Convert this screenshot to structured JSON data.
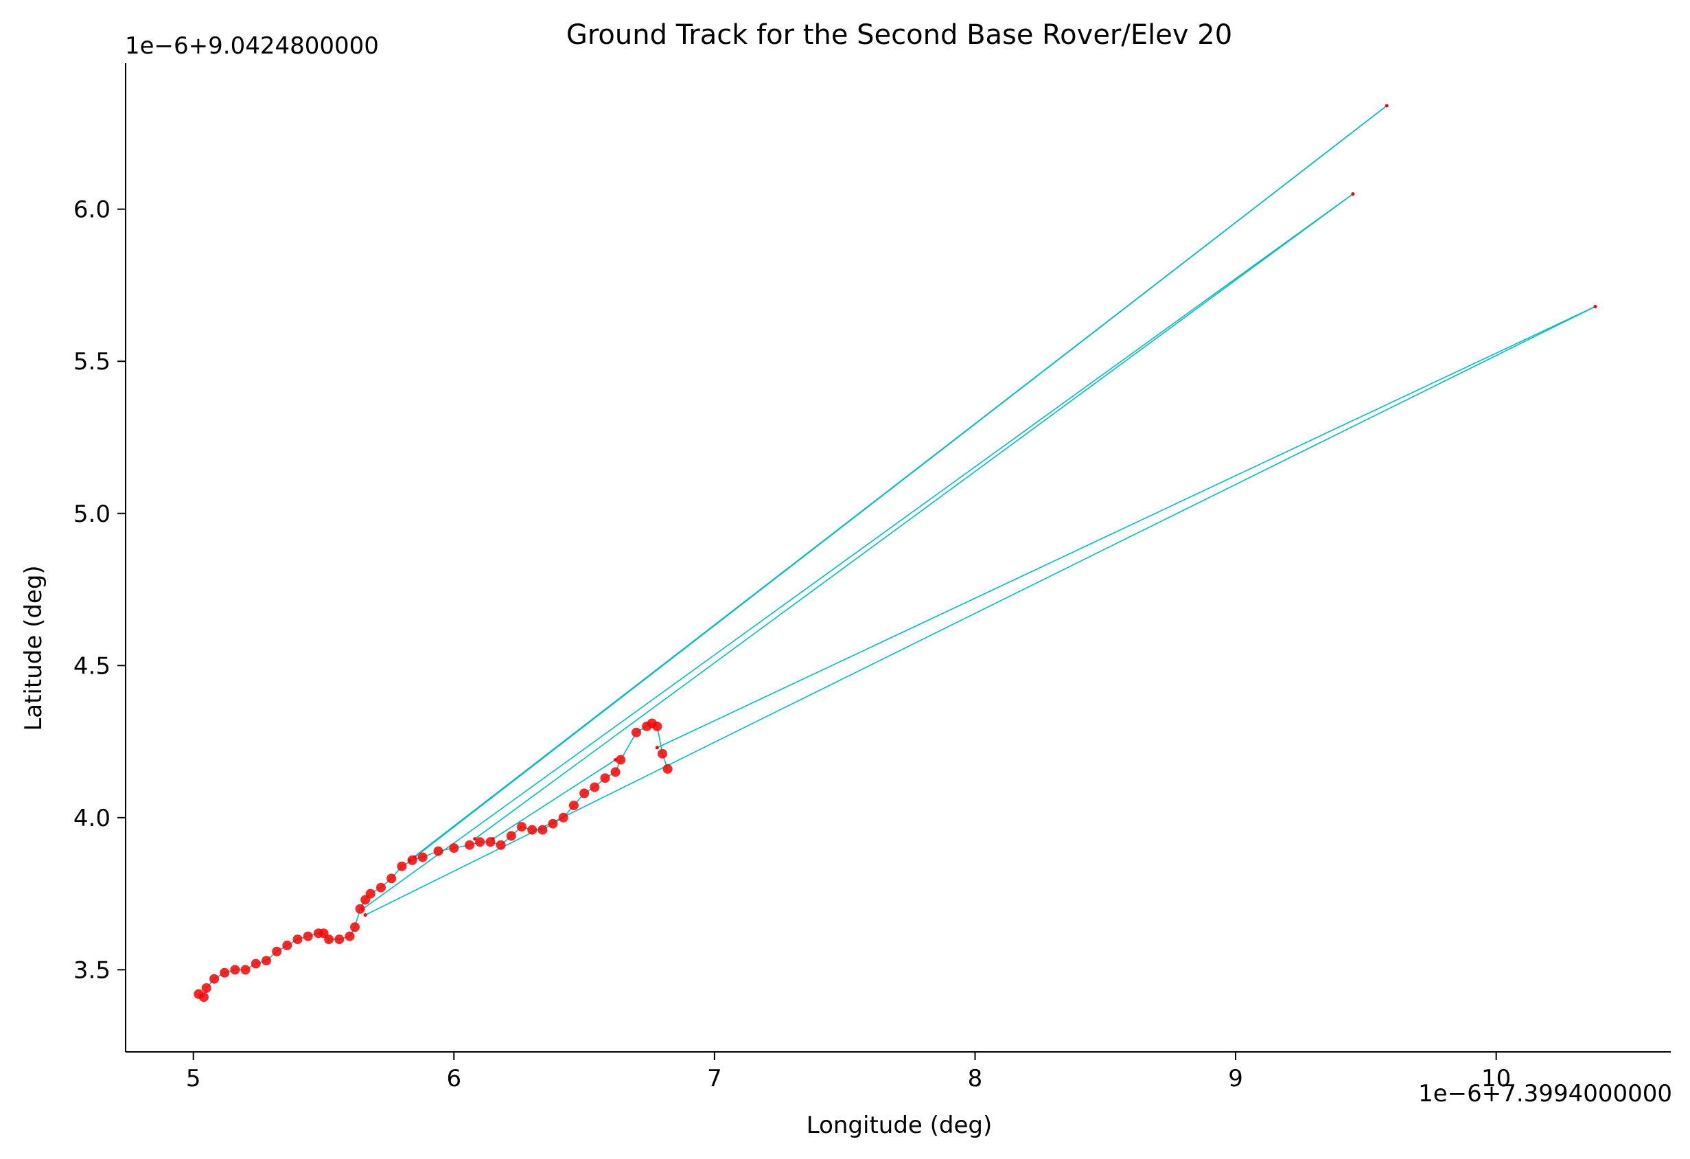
{
  "chart_data": {
    "type": "line",
    "title": "Ground Track for the Second Base Rover/Elev 20",
    "xlabel": "Longitude (deg)",
    "ylabel": "Latitude (deg)",
    "x_offset_text": "1e−6+7.3994000000",
    "y_offset_text": "1e−6+9.0424800000",
    "x_offset": 7.3994,
    "y_offset": 9.04248,
    "x_scale": 1e-06,
    "y_scale": 1e-06,
    "xlim": [
      4.74,
      10.67
    ],
    "ylim": [
      3.23,
      6.48
    ],
    "xticks": [
      5,
      6,
      7,
      8,
      9,
      10
    ],
    "xtick_labels": [
      "5",
      "6",
      "7",
      "8",
      "9",
      "10"
    ],
    "yticks": [
      3.5,
      4.0,
      4.5,
      5.0,
      5.5,
      6.0
    ],
    "ytick_labels": [
      "3.5",
      "4.0",
      "4.5",
      "5.0",
      "5.5",
      "6.0"
    ],
    "grid": false,
    "units_note": "x and y values below are in units of 1e-6 deg added to the printed offsets",
    "line_color": "#00bfbf",
    "marker_color": "#ff0000",
    "outlier_segments": [
      {
        "x": [
          5.85,
          9.58
        ],
        "y": [
          3.87,
          6.34
        ]
      },
      {
        "x": [
          9.58,
          5.83
        ],
        "y": [
          6.34,
          3.86
        ]
      },
      {
        "x": [
          6.08,
          9.45
        ],
        "y": [
          3.93,
          6.05
        ]
      },
      {
        "x": [
          9.45,
          5.65
        ],
        "y": [
          6.05,
          3.7
        ]
      },
      {
        "x": [
          5.66,
          10.38
        ],
        "y": [
          3.68,
          5.68
        ]
      },
      {
        "x": [
          10.38,
          6.78
        ],
        "y": [
          5.68,
          4.23
        ]
      },
      {
        "x": [
          6.15,
          6.62
        ],
        "y": [
          3.93,
          4.19
        ]
      }
    ],
    "track": {
      "x": [
        5.02,
        5.04,
        5.05,
        5.08,
        5.12,
        5.16,
        5.2,
        5.24,
        5.28,
        5.32,
        5.36,
        5.4,
        5.44,
        5.48,
        5.5,
        5.52,
        5.56,
        5.6,
        5.62,
        5.64,
        5.66,
        5.68,
        5.72,
        5.76,
        5.8,
        5.84,
        5.88,
        5.94,
        6.0,
        6.06,
        6.1,
        6.14,
        6.18,
        6.22,
        6.26,
        6.3,
        6.34,
        6.38,
        6.42,
        6.46,
        6.5,
        6.54,
        6.58,
        6.62,
        6.64,
        6.7,
        6.74,
        6.76,
        6.78,
        6.8,
        6.82
      ],
      "y": [
        3.42,
        3.41,
        3.44,
        3.47,
        3.49,
        3.5,
        3.5,
        3.52,
        3.53,
        3.56,
        3.58,
        3.6,
        3.61,
        3.62,
        3.62,
        3.6,
        3.6,
        3.61,
        3.64,
        3.7,
        3.73,
        3.75,
        3.77,
        3.8,
        3.84,
        3.86,
        3.87,
        3.89,
        3.9,
        3.91,
        3.92,
        3.92,
        3.91,
        3.94,
        3.97,
        3.96,
        3.96,
        3.98,
        4.0,
        4.04,
        4.08,
        4.1,
        4.13,
        4.15,
        4.19,
        4.28,
        4.3,
        4.31,
        4.3,
        4.21,
        4.16
      ]
    }
  }
}
